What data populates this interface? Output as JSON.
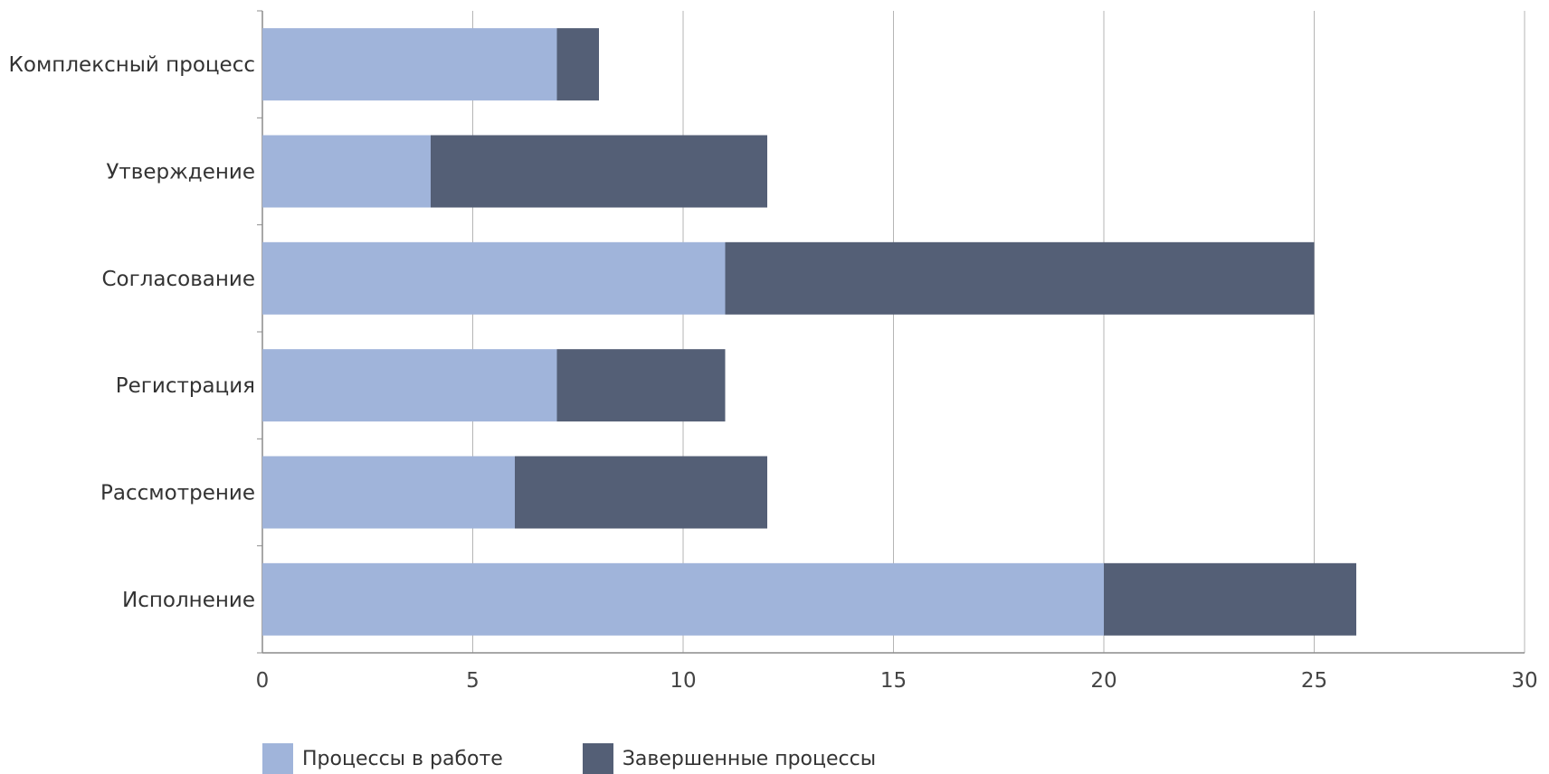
{
  "chart_data": {
    "type": "bar",
    "orientation": "horizontal",
    "stacked": true,
    "categories": [
      "Комплексный процесс",
      "Утверждение",
      "Согласование",
      "Регистрация",
      "Рассмотрение",
      "Исполнение"
    ],
    "series": [
      {
        "name": "Процессы в работе",
        "color": "#a0b4da",
        "values": [
          7,
          4,
          11,
          7,
          6,
          20
        ]
      },
      {
        "name": "Завершенные процессы",
        "color": "#545f76",
        "values": [
          1,
          8,
          14,
          4,
          6,
          6
        ]
      }
    ],
    "xlim": [
      0,
      30
    ],
    "xticks": [
      "0",
      "5",
      "10",
      "15",
      "20",
      "25",
      "30"
    ],
    "grid": true,
    "legend_position": "bottom-left"
  }
}
